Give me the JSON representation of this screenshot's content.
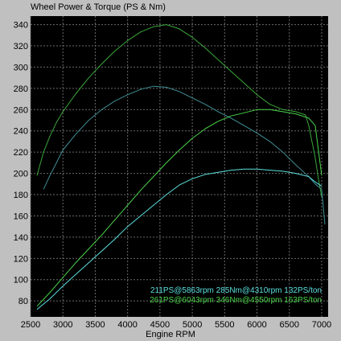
{
  "chart_data": {
    "type": "line",
    "title": "Wheel Power & Torque (PS & Nm)",
    "xlabel": "Engine RPM",
    "ylabel": "",
    "xlim": [
      2500,
      7100
    ],
    "ylim": [
      65,
      348
    ],
    "xticks": [
      2500,
      3000,
      3500,
      4000,
      4500,
      5000,
      5500,
      6000,
      6500,
      7000
    ],
    "yticks": [
      80,
      100,
      120,
      140,
      160,
      180,
      200,
      220,
      240,
      260,
      280,
      300,
      320,
      340
    ],
    "grid": true,
    "background": "#000000",
    "series": [
      {
        "color": "#3aa63a",
        "role": "torque",
        "x": [
          2600,
          2700,
          2800,
          2900,
          3000,
          3200,
          3400,
          3600,
          3800,
          4000,
          4200,
          4400,
          4600,
          4800,
          5000,
          5200,
          5400,
          5600,
          5800,
          6000,
          6200,
          6400,
          6600,
          6750,
          6800,
          6900,
          6950,
          7000
        ],
        "y": [
          198,
          220,
          235,
          248,
          258,
          275,
          290,
          303,
          315,
          325,
          333,
          338,
          340,
          336,
          328,
          318,
          307,
          296,
          285,
          274,
          265,
          260,
          258,
          255,
          245,
          215,
          195,
          178
        ]
      },
      {
        "color": "#3f8f95",
        "role": "torque",
        "x": [
          2700,
          2800,
          2900,
          3000,
          3200,
          3400,
          3600,
          3800,
          4000,
          4200,
          4400,
          4600,
          4800,
          5000,
          5200,
          5400,
          5600,
          5800,
          6000,
          6200,
          6400,
          6600,
          6800,
          6900,
          7000,
          7050
        ],
        "y": [
          185,
          198,
          210,
          222,
          237,
          250,
          260,
          268,
          274,
          279,
          282,
          281,
          277,
          271,
          265,
          258,
          252,
          245,
          238,
          230,
          220,
          208,
          197,
          190,
          185,
          152
        ]
      },
      {
        "color": "#4ad44a",
        "role": "power",
        "x": [
          2600,
          2800,
          3000,
          3200,
          3400,
          3600,
          3800,
          4000,
          4200,
          4400,
          4600,
          4800,
          5000,
          5200,
          5400,
          5600,
          5800,
          6000,
          6200,
          6400,
          6600,
          6800,
          6900,
          7000
        ],
        "y": [
          75,
          88,
          102,
          116,
          129,
          142,
          156,
          170,
          184,
          197,
          210,
          222,
          233,
          242,
          249,
          254,
          257,
          260,
          260,
          258,
          256,
          252,
          245,
          198
        ]
      },
      {
        "color": "#5de0e0",
        "role": "power",
        "x": [
          2600,
          2800,
          3000,
          3200,
          3400,
          3600,
          3800,
          4000,
          4200,
          4400,
          4600,
          4800,
          5000,
          5200,
          5400,
          5600,
          5800,
          6000,
          6200,
          6400,
          6600,
          6800,
          6900,
          7000
        ],
        "y": [
          72,
          82,
          94,
          105,
          116,
          127,
          138,
          150,
          160,
          170,
          180,
          189,
          195,
          199,
          201,
          203,
          204,
          204,
          203,
          202,
          200,
          197,
          192,
          188
        ]
      }
    ],
    "annotations": [
      {
        "text": "211PS@5863rpm 285Nm@4310rpm 132PS/ton",
        "color": "#5de0e0"
      },
      {
        "text": "261PS@6043rpm 346Nm@4550rpm 163PS/ton",
        "color": "#4ad44a"
      }
    ]
  }
}
